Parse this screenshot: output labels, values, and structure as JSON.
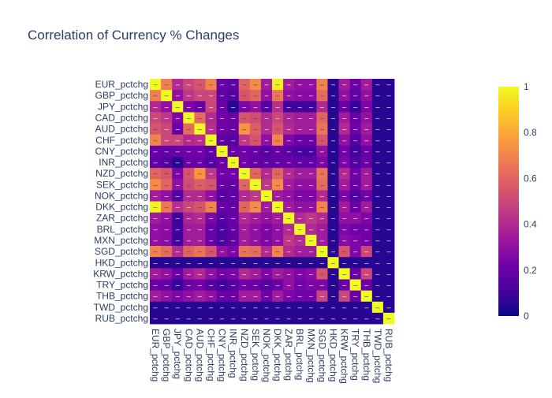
{
  "chart_data": {
    "type": "heatmap",
    "title": "Correlation of Currency % Changes",
    "xlabel": "",
    "ylabel": "",
    "labels": [
      "EUR_pctchg",
      "GBP_pctchg",
      "JPY_pctchg",
      "CAD_pctchg",
      "AUD_pctchg",
      "CHF_pctchg",
      "CNY_pctchg",
      "INR_pctchg",
      "NZD_pctchg",
      "SEK_pctchg",
      "NOK_pctchg",
      "DKK_pctchg",
      "ZAR_pctchg",
      "BRL_pctchg",
      "MXN_pctchg",
      "SGD_pctchg",
      "HKD_pctchg",
      "KRW_pctchg",
      "TRY_pctchg",
      "THB_pctchg",
      "TWD_pctchg",
      "RUB_pctchg"
    ],
    "zrange": [
      0,
      1
    ],
    "colorbar": {
      "ticks": [
        0,
        0.2,
        0.4,
        0.6,
        0.8,
        1
      ],
      "tick_labels": [
        "0",
        "0.2",
        "0.4",
        "0.6",
        "0.8",
        "1"
      ]
    },
    "colorscale": [
      "#0d0887",
      "#46039f",
      "#7201a8",
      "#9c179e",
      "#bd3786",
      "#d8576b",
      "#ed7953",
      "#fb9f3a",
      "#fdca26",
      "#f0f921"
    ],
    "cell_text": "–",
    "z": [
      [
        1.0,
        0.68,
        0.4,
        0.5,
        0.55,
        0.7,
        0.2,
        0.18,
        0.6,
        0.72,
        0.35,
        0.98,
        0.35,
        0.3,
        0.3,
        0.7,
        0.05,
        0.35,
        0.2,
        0.35,
        0.05,
        0.05
      ],
      [
        0.68,
        1.0,
        0.3,
        0.45,
        0.5,
        0.5,
        0.18,
        0.15,
        0.55,
        0.6,
        0.3,
        0.66,
        0.3,
        0.28,
        0.28,
        0.62,
        0.05,
        0.3,
        0.18,
        0.3,
        0.05,
        0.05
      ],
      [
        0.4,
        0.3,
        1.0,
        0.25,
        0.2,
        0.5,
        0.2,
        0.05,
        0.25,
        0.3,
        0.15,
        0.42,
        0.1,
        0.1,
        0.1,
        0.4,
        0.05,
        0.2,
        0.08,
        0.25,
        0.05,
        0.05
      ],
      [
        0.5,
        0.45,
        0.25,
        1.0,
        0.62,
        0.4,
        0.22,
        0.2,
        0.55,
        0.52,
        0.4,
        0.5,
        0.38,
        0.35,
        0.35,
        0.6,
        0.05,
        0.35,
        0.2,
        0.3,
        0.05,
        0.05
      ],
      [
        0.55,
        0.5,
        0.2,
        0.62,
        1.0,
        0.42,
        0.22,
        0.2,
        0.75,
        0.58,
        0.4,
        0.55,
        0.4,
        0.35,
        0.35,
        0.65,
        0.05,
        0.4,
        0.22,
        0.35,
        0.05,
        0.05
      ],
      [
        0.7,
        0.5,
        0.5,
        0.4,
        0.42,
        1.0,
        0.18,
        0.15,
        0.45,
        0.55,
        0.3,
        0.7,
        0.25,
        0.2,
        0.2,
        0.55,
        0.05,
        0.3,
        0.15,
        0.3,
        0.05,
        0.05
      ],
      [
        0.2,
        0.18,
        0.2,
        0.22,
        0.22,
        0.18,
        1.0,
        0.2,
        0.22,
        0.2,
        0.15,
        0.2,
        0.15,
        0.12,
        0.12,
        0.3,
        0.05,
        0.22,
        0.1,
        0.2,
        0.05,
        0.05
      ],
      [
        0.18,
        0.15,
        0.05,
        0.2,
        0.2,
        0.15,
        0.2,
        1.0,
        0.22,
        0.18,
        0.18,
        0.18,
        0.2,
        0.18,
        0.18,
        0.25,
        0.05,
        0.25,
        0.15,
        0.2,
        0.05,
        0.05
      ],
      [
        0.6,
        0.55,
        0.25,
        0.55,
        0.75,
        0.45,
        0.22,
        0.22,
        1.0,
        0.6,
        0.4,
        0.6,
        0.4,
        0.35,
        0.35,
        0.65,
        0.05,
        0.4,
        0.22,
        0.35,
        0.05,
        0.05
      ],
      [
        0.72,
        0.6,
        0.3,
        0.52,
        0.58,
        0.55,
        0.2,
        0.18,
        0.6,
        1.0,
        0.45,
        0.72,
        0.35,
        0.3,
        0.3,
        0.62,
        0.05,
        0.35,
        0.2,
        0.35,
        0.05,
        0.05
      ],
      [
        0.35,
        0.3,
        0.15,
        0.4,
        0.4,
        0.3,
        0.15,
        0.18,
        0.4,
        0.45,
        1.0,
        0.35,
        0.3,
        0.25,
        0.25,
        0.4,
        0.05,
        0.25,
        0.15,
        0.22,
        0.05,
        0.05
      ],
      [
        0.98,
        0.66,
        0.42,
        0.5,
        0.55,
        0.7,
        0.2,
        0.18,
        0.6,
        0.72,
        0.35,
        1.0,
        0.35,
        0.3,
        0.3,
        0.7,
        0.05,
        0.35,
        0.2,
        0.35,
        0.05,
        0.05
      ],
      [
        0.35,
        0.3,
        0.1,
        0.38,
        0.4,
        0.25,
        0.15,
        0.2,
        0.4,
        0.35,
        0.3,
        0.35,
        1.0,
        0.4,
        0.45,
        0.4,
        0.05,
        0.3,
        0.3,
        0.25,
        0.05,
        0.05
      ],
      [
        0.3,
        0.28,
        0.1,
        0.35,
        0.35,
        0.2,
        0.12,
        0.18,
        0.35,
        0.3,
        0.25,
        0.3,
        0.4,
        1.0,
        0.4,
        0.35,
        0.05,
        0.25,
        0.22,
        0.22,
        0.05,
        0.05
      ],
      [
        0.3,
        0.28,
        0.1,
        0.35,
        0.35,
        0.2,
        0.12,
        0.18,
        0.35,
        0.3,
        0.25,
        0.3,
        0.45,
        0.4,
        1.0,
        0.35,
        0.05,
        0.28,
        0.25,
        0.22,
        0.05,
        0.05
      ],
      [
        0.7,
        0.62,
        0.4,
        0.6,
        0.65,
        0.55,
        0.3,
        0.25,
        0.65,
        0.62,
        0.4,
        0.7,
        0.4,
        0.35,
        0.35,
        1.0,
        0.05,
        0.55,
        0.25,
        0.5,
        0.05,
        0.05
      ],
      [
        0.05,
        0.05,
        0.05,
        0.05,
        0.05,
        0.05,
        0.05,
        0.05,
        0.05,
        0.05,
        0.05,
        0.05,
        0.05,
        0.05,
        0.05,
        0.05,
        1.0,
        0.05,
        0.05,
        0.05,
        0.05,
        0.05
      ],
      [
        0.35,
        0.3,
        0.2,
        0.35,
        0.4,
        0.3,
        0.22,
        0.25,
        0.4,
        0.35,
        0.25,
        0.35,
        0.3,
        0.25,
        0.28,
        0.55,
        0.05,
        1.0,
        0.2,
        0.5,
        0.05,
        0.05
      ],
      [
        0.2,
        0.18,
        0.08,
        0.2,
        0.22,
        0.15,
        0.1,
        0.15,
        0.22,
        0.2,
        0.15,
        0.2,
        0.3,
        0.22,
        0.25,
        0.25,
        0.05,
        0.2,
        1.0,
        0.2,
        0.05,
        0.05
      ],
      [
        0.35,
        0.3,
        0.25,
        0.3,
        0.35,
        0.3,
        0.2,
        0.2,
        0.35,
        0.35,
        0.22,
        0.35,
        0.25,
        0.22,
        0.22,
        0.5,
        0.05,
        0.5,
        0.2,
        1.0,
        0.05,
        0.05
      ],
      [
        0.05,
        0.05,
        0.05,
        0.05,
        0.05,
        0.05,
        0.05,
        0.05,
        0.05,
        0.05,
        0.05,
        0.05,
        0.05,
        0.05,
        0.05,
        0.05,
        0.05,
        0.05,
        0.05,
        0.05,
        1.0,
        0.05
      ],
      [
        0.05,
        0.05,
        0.05,
        0.05,
        0.05,
        0.05,
        0.05,
        0.05,
        0.05,
        0.05,
        0.05,
        0.05,
        0.05,
        0.05,
        0.05,
        0.05,
        0.05,
        0.05,
        0.05,
        0.05,
        0.05,
        1.0
      ]
    ]
  }
}
